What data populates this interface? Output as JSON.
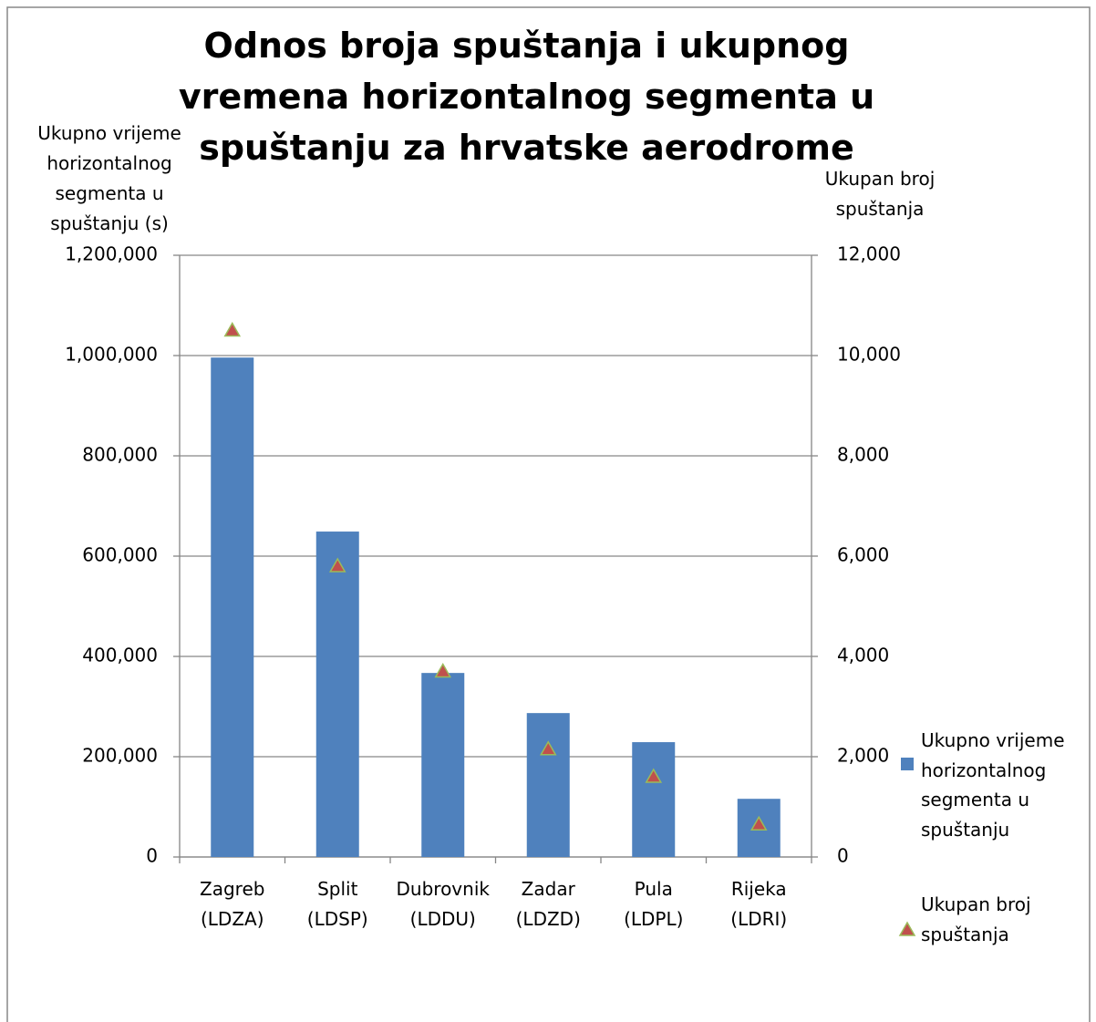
{
  "chart_data": {
    "type": "bar_scatter",
    "title": "Odnos broja spuštanja i ukupnog vremena horizontalnog segmenta u spuštanju za hrvatske aerodrome",
    "y_label": "Ukupno vrijeme horizontalnog segmenta u spuštanju (s)",
    "y2_label": "Ukupan broj spuštanja",
    "categories": [
      "Zagreb (LDZA)",
      "Split (LDSP)",
      "Dubrovnik (LDDU)",
      "Zadar (LDZD)",
      "Pula (LDPL)",
      "Rijeka (LDRI)"
    ],
    "series": [
      {
        "name": "Ukupno vrijeme horizontalnog segmenta u spuštanju",
        "type": "bar",
        "color": "#4f81bd",
        "values": [
          996000,
          649000,
          367000,
          287000,
          229000,
          116000
        ]
      },
      {
        "name": "Ukupan broj spuštanja",
        "type": "triangle",
        "axis": "y2",
        "color": "#c0504d",
        "edge_color": "#9bbb59",
        "values": [
          10500,
          5800,
          3700,
          2150,
          1600,
          650
        ]
      }
    ],
    "ylim": [
      0,
      1200000
    ],
    "yticks": [
      0,
      {
        "value": 200000,
        "label": "200,000"
      },
      {
        "value": 400000,
        "label": "400,000"
      },
      {
        "value": 600000,
        "label": "600,000"
      },
      {
        "value": 800000,
        "label": "800,000"
      },
      {
        "value": 1000000,
        "label": "1,000,000"
      },
      {
        "value": 1200000,
        "label": "1,200,000"
      }
    ],
    "y2lim": [
      0,
      12000
    ],
    "y2ticks": [
      0,
      {
        "value": 2000,
        "label": "2,000"
      },
      {
        "value": 4000,
        "label": "4,000"
      },
      {
        "value": 6000,
        "label": "6,000"
      },
      {
        "value": 8000,
        "label": "8,000"
      },
      {
        "value": 10000,
        "label": "10,000"
      },
      {
        "value": 12000,
        "label": "12,000"
      }
    ],
    "grid": true,
    "legend": "right"
  }
}
